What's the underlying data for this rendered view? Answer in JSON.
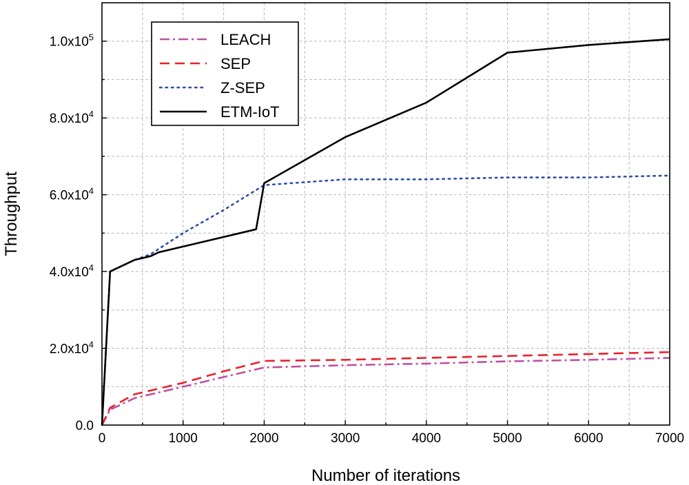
{
  "chart_data": {
    "type": "line",
    "xlabel": "Number of iterations",
    "ylabel": "Throughput",
    "xlim": [
      0,
      7000
    ],
    "ylim": [
      0,
      110000
    ],
    "grid": true,
    "legend_position": "top-left",
    "x_ticks": [
      {
        "value": 0,
        "label": "0"
      },
      {
        "value": 1000,
        "label": "1000"
      },
      {
        "value": 2000,
        "label": "2000"
      },
      {
        "value": 3000,
        "label": "3000"
      },
      {
        "value": 4000,
        "label": "4000"
      },
      {
        "value": 5000,
        "label": "5000"
      },
      {
        "value": 6000,
        "label": "6000"
      },
      {
        "value": 7000,
        "label": "7000"
      }
    ],
    "y_ticks": [
      {
        "value": 0,
        "mantissa": "0.0",
        "exp": ""
      },
      {
        "value": 20000,
        "mantissa": "2.0x10",
        "exp": "4"
      },
      {
        "value": 40000,
        "mantissa": "4.0x10",
        "exp": "4"
      },
      {
        "value": 60000,
        "mantissa": "6.0x10",
        "exp": "4"
      },
      {
        "value": 80000,
        "mantissa": "8.0x10",
        "exp": "4"
      },
      {
        "value": 100000,
        "mantissa": "1.0x10",
        "exp": "5"
      }
    ],
    "series": [
      {
        "name": "LEACH",
        "color": "#c0509f",
        "style": "dashdot",
        "points": [
          [
            0,
            0
          ],
          [
            100,
            4000
          ],
          [
            400,
            7000
          ],
          [
            1000,
            10000
          ],
          [
            1500,
            12500
          ],
          [
            2000,
            15000
          ],
          [
            3000,
            15600
          ],
          [
            4000,
            16000
          ],
          [
            5000,
            16600
          ],
          [
            6000,
            17000
          ],
          [
            7000,
            17500
          ]
        ]
      },
      {
        "name": "SEP",
        "color": "#e8212a",
        "style": "dashed",
        "points": [
          [
            0,
            0
          ],
          [
            100,
            4500
          ],
          [
            400,
            8000
          ],
          [
            1000,
            11000
          ],
          [
            1500,
            14000
          ],
          [
            2000,
            16700
          ],
          [
            3000,
            17000
          ],
          [
            4000,
            17500
          ],
          [
            5000,
            18000
          ],
          [
            6000,
            18500
          ],
          [
            7000,
            19000
          ]
        ]
      },
      {
        "name": "Z-SEP",
        "color": "#2e4fa5",
        "style": "dotted",
        "points": [
          [
            0,
            0
          ],
          [
            100,
            40000
          ],
          [
            400,
            43000
          ],
          [
            600,
            44500
          ],
          [
            1000,
            50000
          ],
          [
            1500,
            56000
          ],
          [
            2000,
            62500
          ],
          [
            3000,
            64000
          ],
          [
            4000,
            64000
          ],
          [
            5000,
            64500
          ],
          [
            6000,
            64500
          ],
          [
            7000,
            65000
          ]
        ]
      },
      {
        "name": "ETM-IoT",
        "color": "#000000",
        "style": "solid",
        "points": [
          [
            0,
            0
          ],
          [
            100,
            40000
          ],
          [
            400,
            43000
          ],
          [
            600,
            44000
          ],
          [
            700,
            45000
          ],
          [
            1100,
            47000
          ],
          [
            1900,
            51000
          ],
          [
            2000,
            63000
          ],
          [
            3000,
            75000
          ],
          [
            4000,
            84000
          ],
          [
            5000,
            97000
          ],
          [
            6000,
            99000
          ],
          [
            7000,
            100500
          ]
        ]
      }
    ]
  }
}
